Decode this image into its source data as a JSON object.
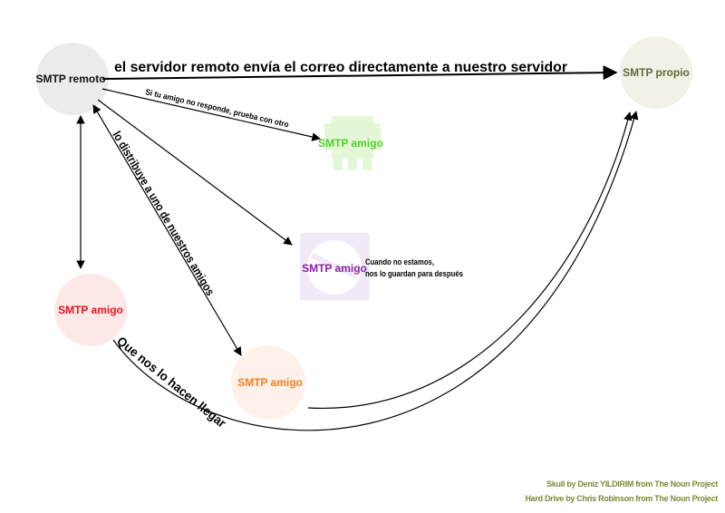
{
  "nodes": {
    "remote": {
      "label": "SMTP remoto",
      "fill": "#ebebeb",
      "text_color": "#111111"
    },
    "own": {
      "label": "SMTP propio",
      "fill": "#f1f1e8",
      "text_color": "#5e6b3a"
    },
    "friend_skull": {
      "label": "SMTP amigo",
      "icon": "skull-icon",
      "icon_color": "#e3f7d6",
      "text_color": "#4fd12a"
    },
    "friend_drive": {
      "label": "SMTP amigo",
      "icon": "hard-drive-icon",
      "icon_color": "#f1e9f6",
      "text_color": "#8a1fa2"
    },
    "friend_red": {
      "label": "SMTP amigo",
      "fill": "#fde8e8",
      "text_color": "#e8141b"
    },
    "friend_orange": {
      "label": "SMTP amigo",
      "fill": "#fdf1ea",
      "text_color": "#f07f23"
    }
  },
  "edges": {
    "direct": "el servidor remoto envía el correo directamente a nuestro servidor",
    "fallback": "Si tu amigo no responde, prueba con otro",
    "distribute": "lo distribuye a uno de nuestros amigos",
    "deliver": "Que nos lo hacen llegar"
  },
  "note": {
    "line1": "Cuando no estamos,",
    "line2": "nos lo guardan para después"
  },
  "credits": {
    "skull": "Skull by Deniz YILDIRIM from The Noun Project",
    "drive": "Hard Drive by Chris Robinson from The Noun Project",
    "color": "#7a8a3a"
  }
}
